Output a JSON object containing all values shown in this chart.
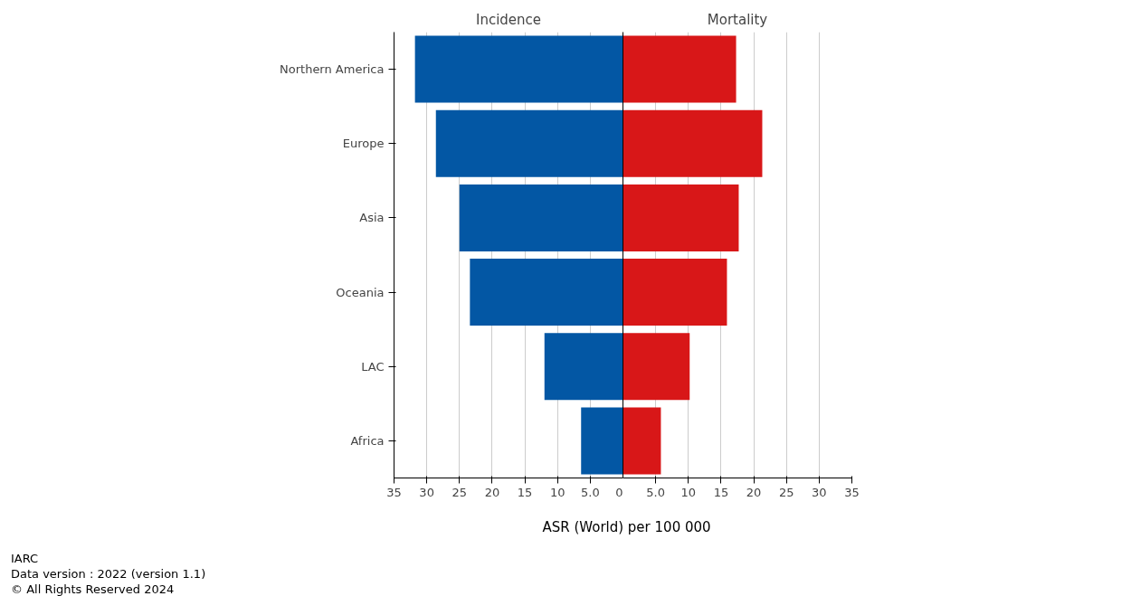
{
  "chart_data": [
    {
      "type": "bar",
      "orientation": "horizontal",
      "title": "Incidence",
      "xlabel": "ASR (World) per 100 000",
      "categories": [
        "Northern America",
        "Europe",
        "Asia",
        "Oceania",
        "LAC",
        "Africa"
      ],
      "series": [
        {
          "color": "#0357a4",
          "values": [
            31.8,
            28.6,
            25.0,
            23.4,
            12.0,
            6.4
          ]
        }
      ],
      "xlim": [
        35,
        0
      ],
      "xticks": [
        35,
        30,
        25,
        20,
        15,
        10,
        {
          "value": 5,
          "label": "5.0"
        },
        0
      ],
      "grid": "x"
    },
    {
      "type": "bar",
      "orientation": "horizontal",
      "title": "Mortality",
      "categories": [
        null,
        null,
        null,
        null,
        null,
        null
      ],
      "series": [
        {
          "color": "#d81718",
          "values": [
            17.3,
            21.3,
            17.7,
            15.9,
            10.2,
            5.8
          ]
        }
      ],
      "xlim": [
        0,
        35
      ],
      "xticks": [
        {
          "value": 5,
          "label": "5.0"
        },
        10,
        15,
        20,
        25,
        30,
        35
      ],
      "grid": "x",
      "tick_labels": "x",
      "annotations": [
        "IARC",
        "Data version : 2022 (version 1.1)",
        "© All Rights Reserved 2024"
      ]
    }
  ]
}
